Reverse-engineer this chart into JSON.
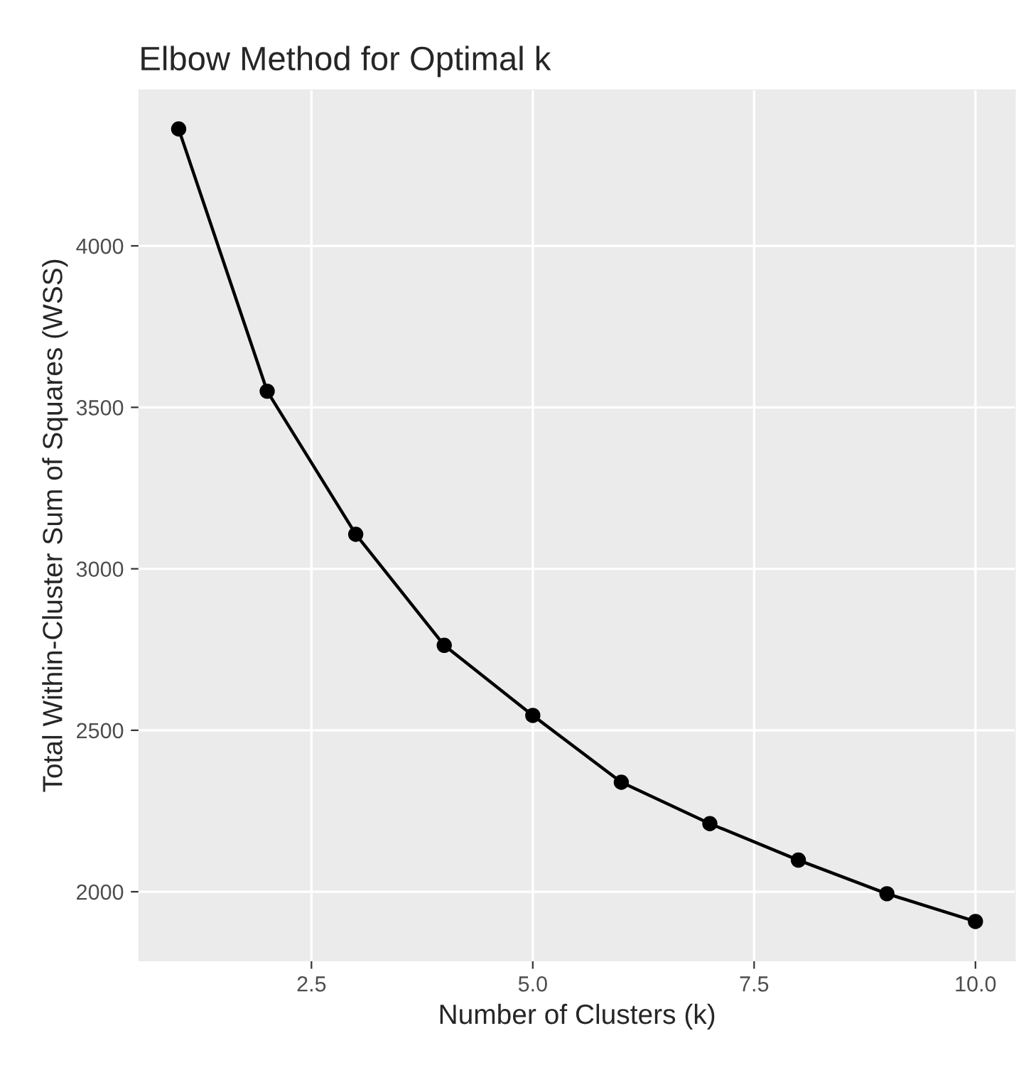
{
  "chart_data": {
    "type": "line",
    "title": "Elbow Method for Optimal k",
    "xlabel": "Number of Clusters (k)",
    "ylabel": "Total Within-Cluster Sum of Squares (WSS)",
    "x": [
      1,
      2,
      3,
      4,
      5,
      6,
      7,
      8,
      9,
      10
    ],
    "series": [
      {
        "color": "#000000",
        "values": [
          4362,
          3550,
          3107,
          2763,
          2546,
          2339,
          2211,
          2098,
          1994,
          1908
        ]
      }
    ],
    "xlim": [
      0.55,
      10.45
    ],
    "xticks": [
      {
        "value": 2.5,
        "label": "2.5"
      },
      {
        "value": 5,
        "label": "5.0"
      },
      {
        "value": 7.5,
        "label": "7.5"
      },
      {
        "value": 10,
        "label": "10.0"
      }
    ],
    "ylim": [
      1786,
      4483
    ],
    "yticks": [
      2000,
      2500,
      3000,
      3500,
      4000
    ],
    "grid": true,
    "marker": "circle",
    "line_style": "solid",
    "legend": false
  }
}
